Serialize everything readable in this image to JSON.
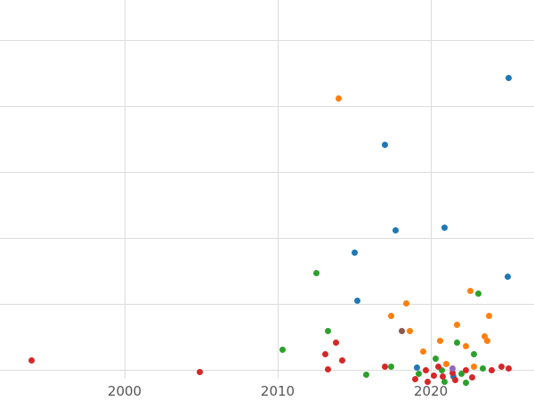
{
  "chart_data": {
    "type": "scatter",
    "title": "",
    "xlabel": "",
    "ylabel": "",
    "grid": true,
    "legend": "none",
    "xlim": [
      1991.86,
      2026.74
    ],
    "ylim": [
      -0.14,
      5.61
    ],
    "x_ticks": [
      2000,
      2010,
      2020
    ],
    "x_tick_labels": [
      "2000",
      "2010",
      "2020"
    ],
    "y_gridline_values": [
      0,
      1,
      2,
      3,
      4,
      5
    ],
    "colors": {
      "grid": "#dcdcdc",
      "tick_text": "#555555",
      "background": "#ffffff"
    },
    "series": [
      {
        "name": "series-blue",
        "color": "#1f77b4",
        "points": [
          [
            2025.1,
            4.43
          ],
          [
            2017.0,
            3.41
          ],
          [
            2017.7,
            2.12
          ],
          [
            2020.9,
            2.15
          ],
          [
            2015.0,
            1.78
          ],
          [
            2015.2,
            1.04
          ],
          [
            2025.0,
            1.41
          ],
          [
            2019.1,
            0.03
          ],
          [
            2021.5,
            -0.1
          ]
        ]
      },
      {
        "name": "series-orange",
        "color": "#ff7f0e",
        "points": [
          [
            2014.0,
            4.12
          ],
          [
            2022.6,
            1.19
          ],
          [
            2018.4,
            1.01
          ],
          [
            2017.4,
            0.81
          ],
          [
            2023.8,
            0.82
          ],
          [
            2021.7,
            0.68
          ],
          [
            2018.6,
            0.58
          ],
          [
            2023.5,
            0.51
          ],
          [
            2020.6,
            0.43
          ],
          [
            2022.3,
            0.35
          ],
          [
            2023.7,
            0.43
          ],
          [
            2019.5,
            0.27
          ],
          [
            2021.0,
            0.09
          ],
          [
            2022.8,
            0.04
          ]
        ]
      },
      {
        "name": "series-green",
        "color": "#2ca02c",
        "points": [
          [
            2012.5,
            1.46
          ],
          [
            2023.1,
            1.15
          ],
          [
            2010.3,
            0.3
          ],
          [
            2013.3,
            0.58
          ],
          [
            2021.7,
            0.41
          ],
          [
            2020.3,
            0.16
          ],
          [
            2022.8,
            0.23
          ],
          [
            2015.8,
            -0.08
          ],
          [
            2017.4,
            0.04
          ],
          [
            2019.2,
            -0.07
          ],
          [
            2020.7,
            -0.01
          ],
          [
            2022.0,
            -0.07
          ],
          [
            2023.4,
            0.01
          ],
          [
            2022.3,
            -0.2
          ],
          [
            2020.9,
            -0.18
          ]
        ]
      },
      {
        "name": "series-red",
        "color": "#d62728",
        "points": [
          [
            1993.9,
            0.14
          ],
          [
            2004.9,
            -0.04
          ],
          [
            2013.8,
            0.41
          ],
          [
            2013.1,
            0.23
          ],
          [
            2014.2,
            0.14
          ],
          [
            2013.3,
            0.0
          ],
          [
            2017.0,
            0.05
          ],
          [
            2019.0,
            -0.14
          ],
          [
            2019.7,
            -0.01
          ],
          [
            2020.2,
            -0.09
          ],
          [
            2020.8,
            -0.11
          ],
          [
            2021.4,
            -0.05
          ],
          [
            2021.6,
            -0.16
          ],
          [
            2022.3,
            -0.01
          ],
          [
            2022.7,
            -0.12
          ],
          [
            2024.0,
            -0.01
          ],
          [
            2024.6,
            0.04
          ],
          [
            2025.1,
            0.01
          ],
          [
            2020.5,
            0.04
          ],
          [
            2019.8,
            -0.18
          ]
        ]
      },
      {
        "name": "series-purple",
        "color": "#9467bd",
        "points": [
          [
            2021.4,
            0.01
          ]
        ]
      },
      {
        "name": "series-brown",
        "color": "#8c564b",
        "points": [
          [
            2018.1,
            0.58
          ]
        ]
      }
    ]
  }
}
